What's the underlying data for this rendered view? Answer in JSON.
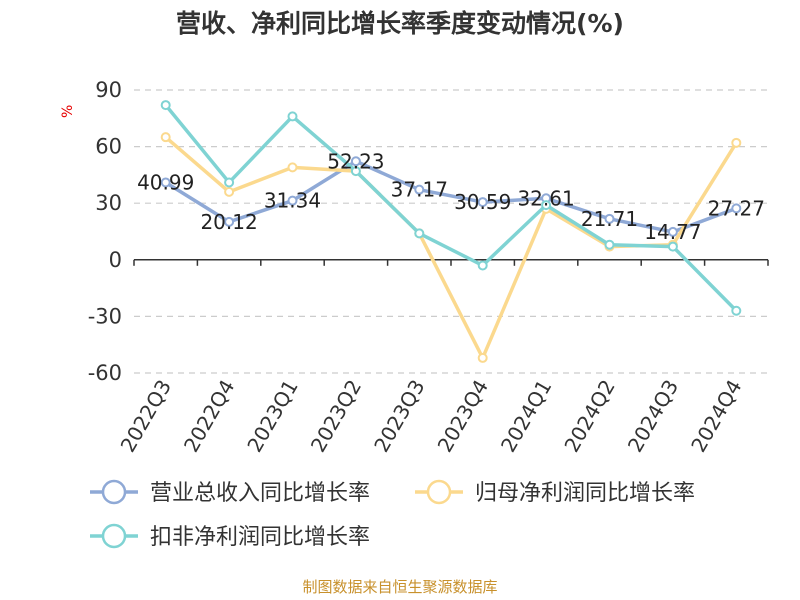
{
  "title": "营收、净利同比增长率季度变动情况(%)",
  "unit_label": "%",
  "source": "制图数据来自恒生聚源数据库",
  "chart_data": {
    "type": "line",
    "categories": [
      "2022Q3",
      "2022Q4",
      "2023Q1",
      "2023Q2",
      "2023Q3",
      "2023Q4",
      "2024Q1",
      "2024Q2",
      "2024Q3",
      "2024Q4"
    ],
    "ylim": [
      -60,
      90
    ],
    "yticks": [
      90,
      60,
      30,
      0,
      -30,
      -60
    ],
    "grid": true,
    "legend_position": "bottom",
    "series": [
      {
        "name": "营业总收入同比增长率",
        "color": "#8fa9d6",
        "values": [
          40.99,
          20.12,
          31.34,
          52.23,
          37.17,
          30.59,
          32.61,
          21.71,
          14.77,
          27.27
        ],
        "labels": [
          "40.99",
          "20.12",
          "31.34",
          "52.23",
          "37.17",
          "30.59",
          "32.61",
          "21.71",
          "14.77",
          "27.27"
        ]
      },
      {
        "name": "归母净利润同比增长率",
        "color": "#fbd98e",
        "values": [
          65,
          36,
          49,
          47,
          14,
          -52,
          27,
          7,
          8,
          62
        ]
      },
      {
        "name": "扣非净利润同比增长率",
        "color": "#7fd3d3",
        "values": [
          82,
          41,
          76,
          47,
          14,
          -3,
          29,
          8,
          7,
          -27
        ]
      }
    ]
  }
}
